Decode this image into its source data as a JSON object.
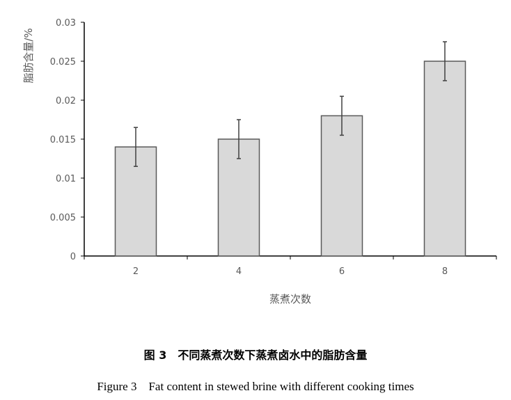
{
  "chart_data": {
    "type": "bar",
    "categories": [
      "2",
      "4",
      "6",
      "8"
    ],
    "values": [
      0.014,
      0.015,
      0.018,
      0.025
    ],
    "error": [
      0.0025,
      0.0025,
      0.0025,
      0.0025
    ],
    "xlabel": "蒸煮次数",
    "ylabel": "脂肪含量/%",
    "ylim": [
      0,
      0.03
    ],
    "yticks": [
      "0",
      "0.005",
      "0.01",
      "0.015",
      "0.02",
      "0.025",
      "0.03"
    ],
    "grid": false,
    "legend": "none",
    "colors": {
      "bar_fill": "#d9d9d9",
      "bar_stroke": "#595959",
      "axis": "#000000",
      "error_bar": "#404040"
    }
  },
  "caption": {
    "cn": "图 3　不同蒸煮次数下蒸煮卤水中的脂肪含量",
    "en": "Figure 3　Fat content in stewed brine with different cooking times"
  }
}
